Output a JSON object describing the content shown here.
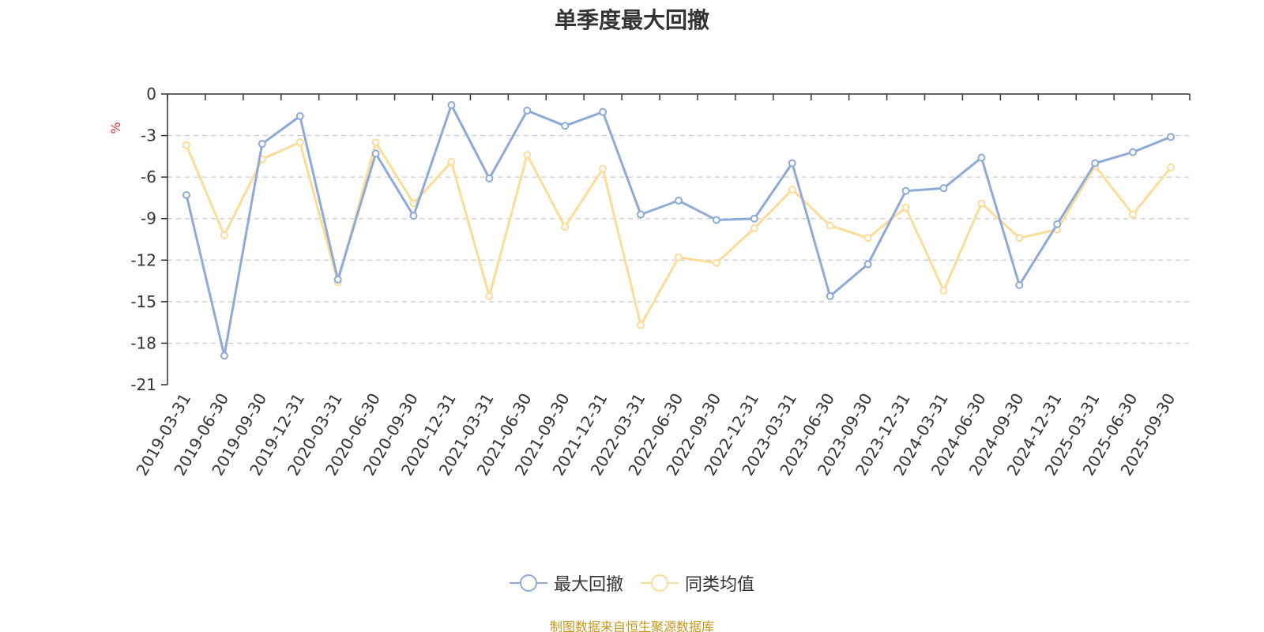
{
  "chart_data": {
    "type": "line",
    "title": "单季度最大回撤",
    "ylabel": "%",
    "xlabel": "",
    "ylim": [
      -21,
      0
    ],
    "yticks": [
      0,
      -3,
      -6,
      -9,
      -12,
      -15,
      -18,
      -21
    ],
    "grid": true,
    "legend_position": "bottom",
    "categories": [
      "2019-03-31",
      "2019-06-30",
      "2019-09-30",
      "2019-12-31",
      "2020-03-31",
      "2020-06-30",
      "2020-09-30",
      "2020-12-31",
      "2021-03-31",
      "2021-06-30",
      "2021-09-30",
      "2021-12-31",
      "2022-03-31",
      "2022-06-30",
      "2022-09-30",
      "2022-12-31",
      "2023-03-31",
      "2023-06-30",
      "2023-09-30",
      "2023-12-31",
      "2024-03-31",
      "2024-06-30",
      "2024-09-30",
      "2024-12-31",
      "2025-03-31",
      "2025-06-30",
      "2025-09-30"
    ],
    "series": [
      {
        "name": "最大回撤",
        "color": "#8eaad8",
        "values": [
          -7.3,
          -18.9,
          -3.6,
          -1.6,
          -13.4,
          -4.3,
          -8.8,
          -0.8,
          -6.1,
          -1.2,
          -2.3,
          -1.3,
          -8.7,
          -7.7,
          -9.1,
          -9.0,
          -5.0,
          -14.6,
          -12.3,
          -7.0,
          -6.8,
          -4.6,
          -13.8,
          -9.4,
          -5.0,
          -4.2,
          -3.1
        ]
      },
      {
        "name": "同类均值",
        "color": "#fddc98",
        "values": [
          -3.7,
          -10.2,
          -4.7,
          -3.5,
          -13.6,
          -3.5,
          -7.9,
          -4.9,
          -14.6,
          -4.4,
          -9.6,
          -5.4,
          -16.7,
          -11.8,
          -12.2,
          -9.7,
          -6.9,
          -9.5,
          -10.4,
          -8.2,
          -14.2,
          -7.9,
          -10.4,
          -9.8,
          -5.2,
          -8.7,
          -5.3
        ]
      }
    ],
    "source_note": "制图数据来自恒生聚源数据库"
  }
}
